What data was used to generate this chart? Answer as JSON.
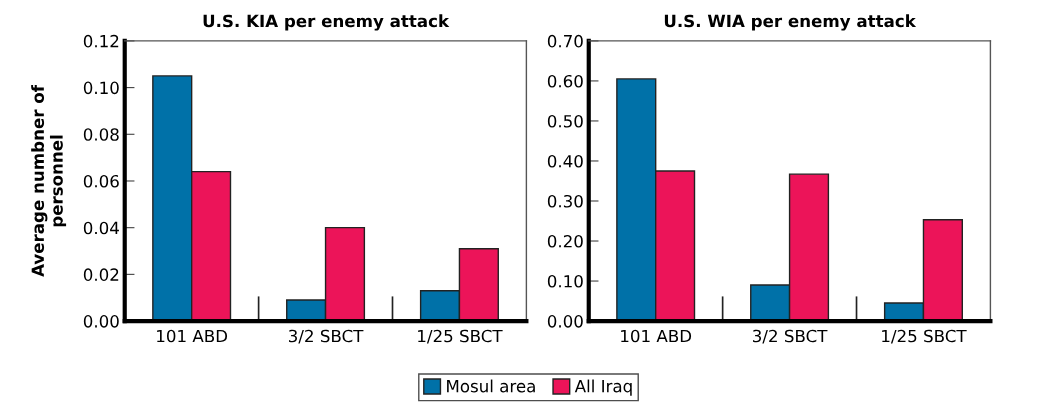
{
  "chart_data": [
    {
      "type": "bar",
      "title": "U.S. KIA per enemy attack",
      "ylabel": "Average numbner of\npersonnel",
      "categories": [
        "101 ABD",
        "3/2 SBCT",
        "1/25 SBCT"
      ],
      "series": [
        {
          "name": "Mosul area",
          "color": "#0071a8",
          "values": [
            0.105,
            0.009,
            0.013
          ]
        },
        {
          "name": "All Iraq",
          "color": "#ec1459",
          "values": [
            0.064,
            0.04,
            0.031
          ]
        }
      ],
      "ylim": [
        0,
        0.12
      ],
      "yticks": [
        {
          "value": 0,
          "label": "0.00"
        },
        {
          "value": 0.02,
          "label": "0.02"
        },
        {
          "value": 0.04,
          "label": "0.04"
        },
        {
          "value": 0.06,
          "label": "0.06"
        },
        {
          "value": 0.08,
          "label": "0.08"
        },
        {
          "value": 0.1,
          "label": "0.10"
        },
        {
          "value": 0.12,
          "label": "0.12"
        }
      ],
      "grid": false,
      "legend": "bottom"
    },
    {
      "type": "bar",
      "title": "U.S. WIA per enemy attack",
      "categories": [
        "101 ABD",
        "3/2 SBCT",
        "1/25 SBCT"
      ],
      "series": [
        {
          "color": "#0071a8",
          "values": [
            0.605,
            0.09,
            0.045
          ]
        },
        {
          "color": "#ec1459",
          "values": [
            0.375,
            0.367,
            0.253
          ]
        }
      ],
      "ylim": [
        0,
        0.7
      ],
      "yticks": [
        {
          "value": 0,
          "label": "0.00"
        },
        {
          "value": 0.1,
          "label": "0.10"
        },
        {
          "value": 0.2,
          "label": "0.20"
        },
        {
          "value": 0.3,
          "label": "0.30"
        },
        {
          "value": 0.4,
          "label": "0.40"
        },
        {
          "value": 0.5,
          "label": "0.50"
        },
        {
          "value": 0.6,
          "label": "0.60"
        },
        {
          "value": 0.7,
          "label": "0.70"
        }
      ],
      "grid": false
    }
  ]
}
